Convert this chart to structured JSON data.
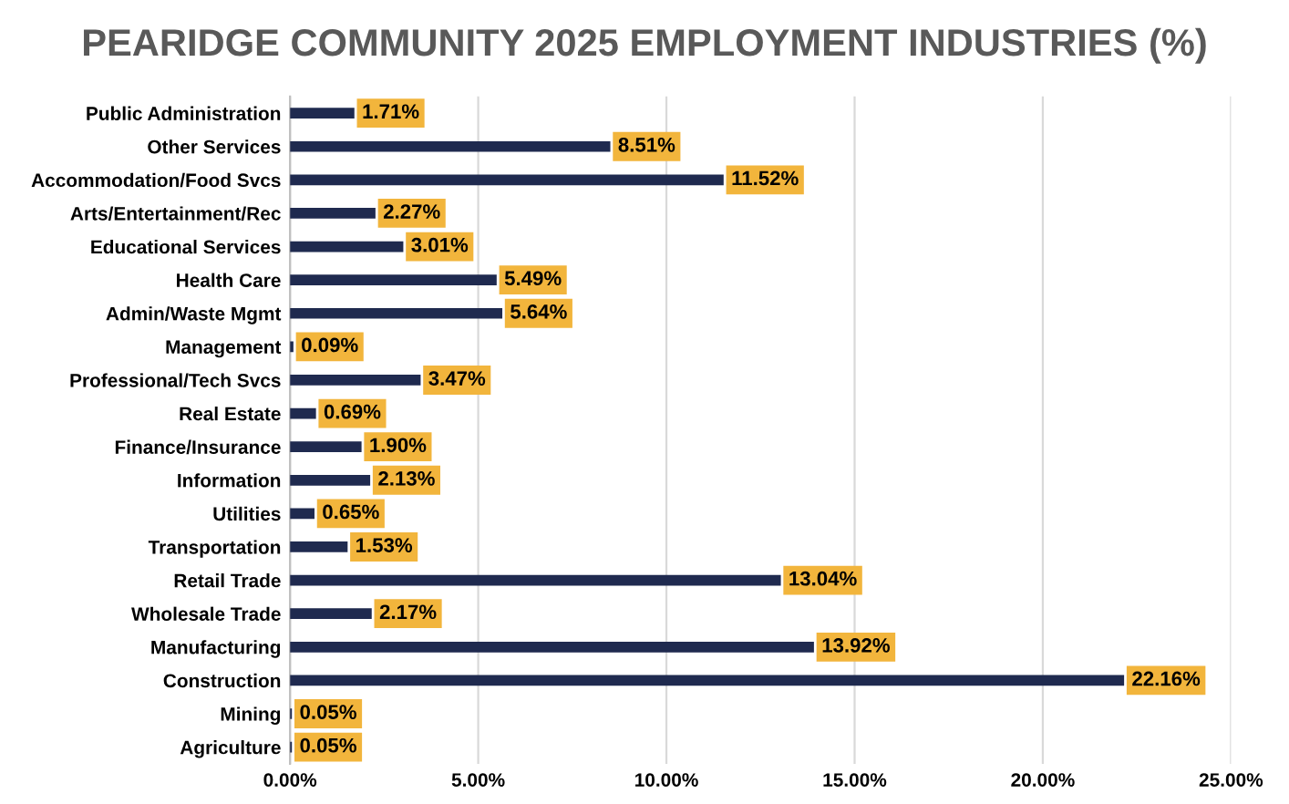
{
  "chart_data": {
    "type": "bar",
    "orientation": "horizontal",
    "title": "PEARIDGE COMMUNITY 2025 EMPLOYMENT INDUSTRIES (%)",
    "categories": [
      "Public Administration",
      "Other Services",
      "Accommodation/Food Svcs",
      "Arts/Entertainment/Rec",
      "Educational Services",
      "Health Care",
      "Admin/Waste Mgmt",
      "Management",
      "Professional/Tech Svcs",
      "Real Estate",
      "Finance/Insurance",
      "Information",
      "Utilities",
      "Transportation",
      "Retail Trade",
      "Wholesale Trade",
      "Manufacturing",
      "Construction",
      "Mining",
      "Agriculture"
    ],
    "values": [
      1.71,
      8.51,
      11.52,
      2.27,
      3.01,
      5.49,
      5.64,
      0.09,
      3.47,
      0.69,
      1.9,
      2.13,
      0.65,
      1.53,
      13.04,
      2.17,
      13.92,
      22.16,
      0.05,
      0.05
    ],
    "value_labels": [
      "1.71%",
      "8.51%",
      "11.52%",
      "2.27%",
      "3.01%",
      "5.49%",
      "5.64%",
      "0.09%",
      "3.47%",
      "0.69%",
      "1.90%",
      "2.13%",
      "0.65%",
      "1.53%",
      "13.04%",
      "2.17%",
      "13.92%",
      "22.16%",
      "0.05%",
      "0.05%"
    ],
    "color": "#1f2a4f",
    "xlim": [
      0,
      25
    ],
    "xticks": [
      {
        "value": 0,
        "label": "0.00%"
      },
      {
        "value": 5,
        "label": "5.00%"
      },
      {
        "value": 10,
        "label": "10.00%"
      },
      {
        "value": 15,
        "label": "15.00%"
      },
      {
        "value": 20,
        "label": "20.00%"
      },
      {
        "value": 25,
        "label": "25.00%"
      }
    ],
    "grid": "x"
  }
}
